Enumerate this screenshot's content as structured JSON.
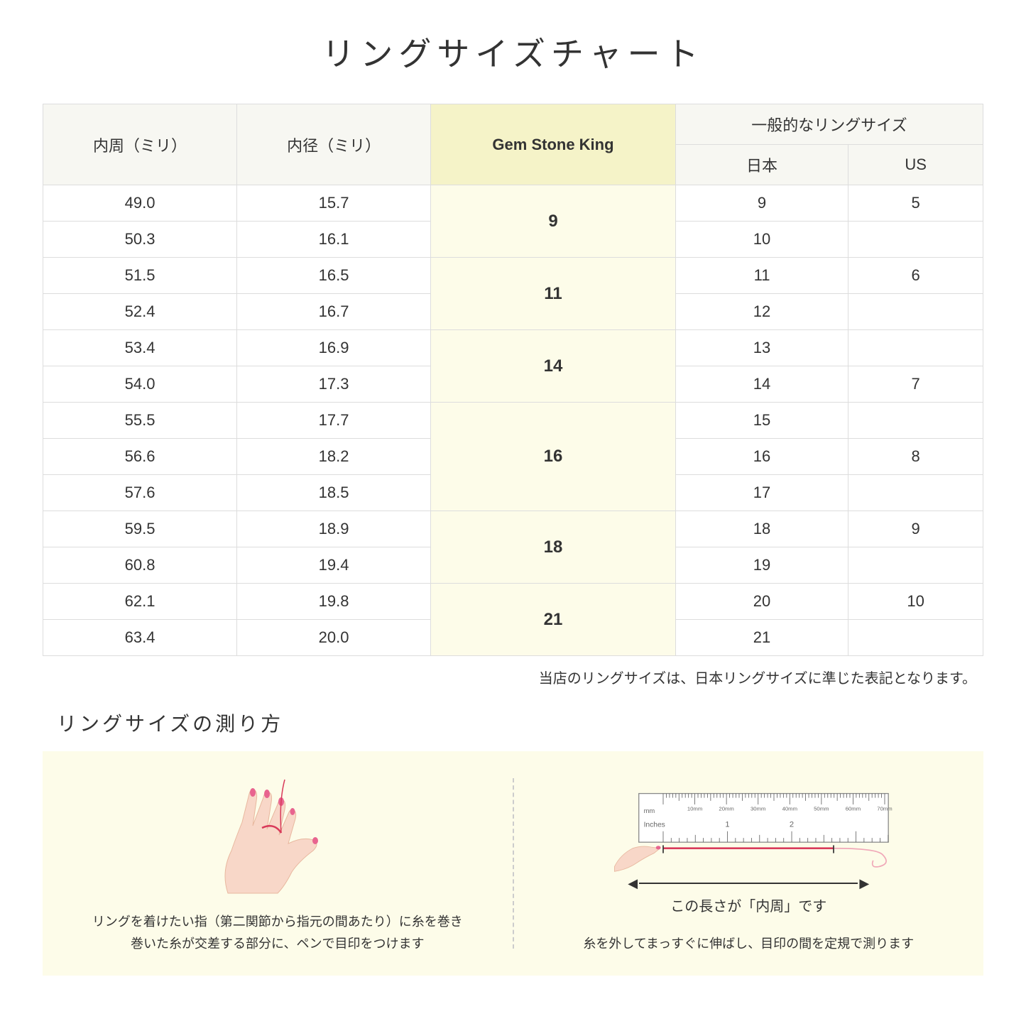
{
  "title": "リングサイズチャート",
  "headers": {
    "circumference": "内周（ミリ）",
    "diameter": "内径（ミリ）",
    "gsk": "Gem Stone King",
    "general": "一般的なリングサイズ",
    "japan": "日本",
    "us": "US"
  },
  "rows": [
    {
      "circ": "49.0",
      "diam": "15.7",
      "jp": "9",
      "us": "5"
    },
    {
      "circ": "50.3",
      "diam": "16.1",
      "jp": "10",
      "us": ""
    },
    {
      "circ": "51.5",
      "diam": "16.5",
      "jp": "11",
      "us": "6"
    },
    {
      "circ": "52.4",
      "diam": "16.7",
      "jp": "12",
      "us": ""
    },
    {
      "circ": "53.4",
      "diam": "16.9",
      "jp": "13",
      "us": ""
    },
    {
      "circ": "54.0",
      "diam": "17.3",
      "jp": "14",
      "us": "7"
    },
    {
      "circ": "55.5",
      "diam": "17.7",
      "jp": "15",
      "us": ""
    },
    {
      "circ": "56.6",
      "diam": "18.2",
      "jp": "16",
      "us": "8"
    },
    {
      "circ": "57.6",
      "diam": "18.5",
      "jp": "17",
      "us": ""
    },
    {
      "circ": "59.5",
      "diam": "18.9",
      "jp": "18",
      "us": "9"
    },
    {
      "circ": "60.8",
      "diam": "19.4",
      "jp": "19",
      "us": ""
    },
    {
      "circ": "62.1",
      "diam": "19.8",
      "jp": "20",
      "us": "10"
    },
    {
      "circ": "63.4",
      "diam": "20.0",
      "jp": "21",
      "us": ""
    }
  ],
  "gsk_groups": [
    {
      "size": "9",
      "span": 2
    },
    {
      "size": "11",
      "span": 2
    },
    {
      "size": "14",
      "span": 2
    },
    {
      "size": "16",
      "span": 3
    },
    {
      "size": "18",
      "span": 2
    },
    {
      "size": "21",
      "span": 2
    }
  ],
  "note": "当店のリングサイズは、日本リングサイズに準じた表記となります。",
  "measure": {
    "title": "リングサイズの測り方",
    "left_caption": "リングを着けたい指（第二関節から指元の間あたり）に糸を巻き\n巻いた糸が交差する部分に、ペンで目印をつけます",
    "right_arrow_label": "この長さが「内周」です",
    "right_caption": "糸を外してまっすぐに伸ばし、目印の間を定規で測ります",
    "ruler_labels": {
      "mm": "mm",
      "inches": "Inches",
      "mm_marks": [
        "10mm",
        "20mm",
        "30mm",
        "40mm",
        "50mm",
        "60mm",
        "70mm"
      ],
      "inch_marks": [
        "1",
        "2"
      ]
    }
  },
  "colors": {
    "header_bg": "#f7f7f2",
    "gsk_header_bg": "#f5f3c8",
    "gsk_cell_bg": "#fdfce9",
    "border": "#dddddd",
    "skin": "#f8d7c8",
    "nail": "#e8648f",
    "thread": "#d93a5a",
    "ruler_border": "#888888"
  }
}
